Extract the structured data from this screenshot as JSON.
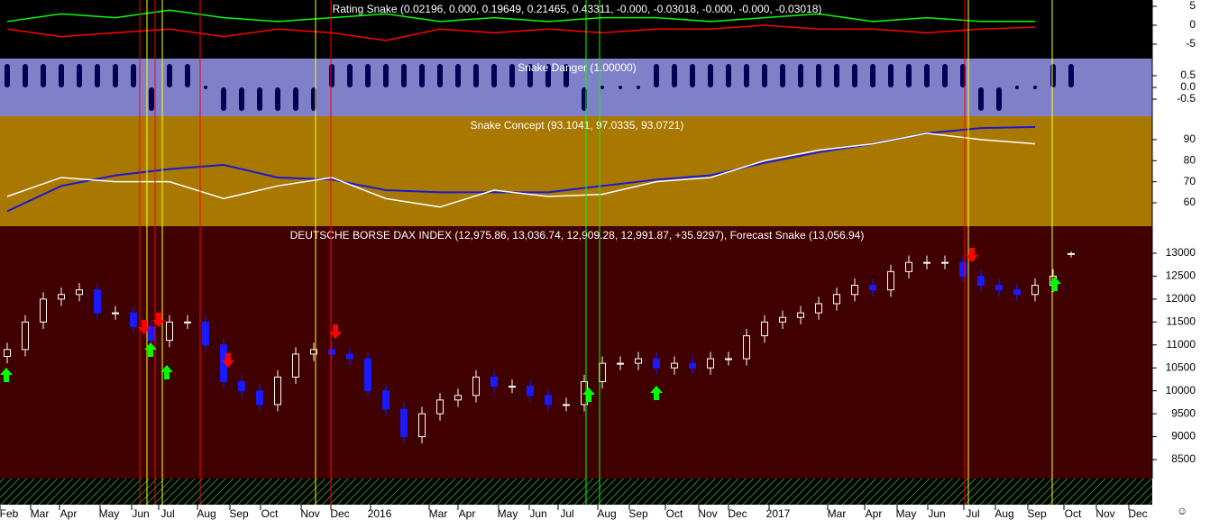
{
  "chart_data": [
    {
      "type": "line",
      "title": "Rating Snake (0.02196, 0.000, 0.19649, 0.21465, 0.43311, -0.000, -0.03018, -0.000, -0.000, -0.03018)",
      "ylim": [
        -8.57,
        6.67
      ],
      "yticks": [
        5,
        0,
        -5
      ],
      "series": [
        {
          "color": "#00ff00",
          "values": [
            1,
            3,
            2,
            4,
            2,
            1,
            2,
            3,
            1,
            2,
            1,
            2,
            2,
            1,
            2,
            3,
            1,
            2,
            1,
            1
          ]
        },
        {
          "color": "#ff0000",
          "values": [
            -1,
            -3,
            -2,
            -1,
            -3,
            -1,
            -2,
            -4,
            -1,
            -2,
            -1,
            -2,
            -1,
            -1,
            0,
            -1,
            -1,
            -2,
            -1,
            -0.5
          ]
        }
      ]
    },
    {
      "type": "bar",
      "title": "Snake Danger (1.00000)",
      "ylim": [
        -1.19,
        1.23
      ],
      "yticks": [
        0.5,
        {
          "value": 0,
          "label": "0.0"
        },
        -0.5
      ],
      "color": "#000055",
      "values": [
        1,
        1,
        1,
        1,
        1,
        1,
        1,
        1,
        -1,
        1,
        1,
        0,
        -1,
        -1,
        -1,
        -1,
        -1,
        -1,
        1,
        1,
        1,
        1,
        1,
        1,
        1,
        1,
        1,
        1,
        1,
        1,
        1,
        1,
        -1,
        0,
        0,
        0,
        1,
        1,
        1,
        1,
        1,
        1,
        1,
        1,
        1,
        1,
        1,
        1,
        1,
        1,
        1,
        1,
        1,
        1,
        -1,
        -1,
        0,
        0,
        1,
        1
      ]
    },
    {
      "type": "line",
      "title": "Snake Concept (93.1041, 97.0335, 93.0721)",
      "ylim": [
        49.3,
        101.1
      ],
      "yticks": [
        90,
        80,
        70,
        60
      ],
      "series": [
        {
          "color": "#1818d8",
          "values": [
            56,
            68,
            73,
            76,
            78,
            72,
            71,
            66,
            65,
            65,
            65,
            68,
            71,
            73,
            79,
            84,
            88,
            93,
            95.5,
            96
          ]
        },
        {
          "color": "#ffffff",
          "values": [
            63,
            72,
            70,
            70,
            62,
            68,
            72,
            62,
            58,
            66,
            63,
            64,
            70,
            72,
            80,
            85,
            88,
            93,
            90,
            88
          ]
        }
      ]
    },
    {
      "type": "candlestick",
      "title": "DEUTSCHE BORSE DAX INDEX (12,975.86, 13,036.74, 12,909.28, 12,991.87, +35.9297), Forecast Snake (13,056.94)",
      "ylim": [
        8107,
        13589
      ],
      "yticks": [
        13000,
        12500,
        12000,
        11500,
        11000,
        10500,
        10000,
        9500,
        9000,
        8500
      ],
      "open": [
        10750,
        10900,
        11500,
        12000,
        12100,
        12200,
        11700,
        11700,
        11400,
        11100,
        11500,
        11500,
        11000,
        10200,
        10000,
        9700,
        10300,
        10800,
        10900,
        10800,
        10700,
        10000,
        9600,
        9000,
        9500,
        9800,
        9900,
        10300,
        10100,
        10100,
        9900,
        9700,
        9700,
        10200,
        10600,
        10600,
        10700,
        10500,
        10600,
        10500,
        10700,
        10700,
        11200,
        11500,
        11600,
        11700,
        11900,
        12100,
        12300,
        12200,
        12600,
        12800,
        12800,
        12800,
        12500,
        12300,
        12200,
        12100,
        12300,
        12975.86
      ],
      "high": [
        11050,
        11650,
        12150,
        12250,
        12350,
        12350,
        11850,
        11850,
        11550,
        11650,
        11650,
        11650,
        11150,
        10350,
        10150,
        10450,
        10950,
        11050,
        11050,
        10950,
        10850,
        10150,
        9750,
        9650,
        9950,
        10050,
        10450,
        10450,
        10250,
        10250,
        10050,
        9850,
        10350,
        10750,
        10750,
        10850,
        10850,
        10750,
        10750,
        10850,
        10850,
        11350,
        11650,
        11750,
        11850,
        12050,
        12250,
        12450,
        12450,
        12750,
        12950,
        12950,
        12950,
        12950,
        12650,
        12450,
        12350,
        12450,
        12650,
        13036.74
      ],
      "low": [
        10600,
        10750,
        11350,
        11850,
        11950,
        11550,
        11550,
        11250,
        10950,
        10950,
        11350,
        10850,
        10050,
        9850,
        9550,
        9550,
        10150,
        10650,
        10650,
        10550,
        9850,
        9450,
        8850,
        8850,
        9350,
        9650,
        9750,
        9950,
        9950,
        9750,
        9550,
        9550,
        9550,
        10050,
        10450,
        10450,
        10350,
        10350,
        10350,
        10350,
        10550,
        10550,
        11050,
        11350,
        11450,
        11550,
        11750,
        11950,
        12050,
        12050,
        12450,
        12650,
        12650,
        12350,
        12150,
        12050,
        11950,
        11950,
        12150,
        12909.28
      ],
      "close": [
        10900,
        11500,
        12000,
        12100,
        12200,
        11700,
        11700,
        11400,
        11100,
        11500,
        11500,
        11000,
        10200,
        10000,
        9700,
        10300,
        10800,
        10900,
        10800,
        10700,
        10000,
        9600,
        9000,
        9500,
        9800,
        9900,
        10300,
        10100,
        10100,
        9900,
        9700,
        9700,
        10200,
        10600,
        10600,
        10700,
        10500,
        10600,
        10500,
        10700,
        10700,
        11200,
        11500,
        11600,
        11700,
        11900,
        12100,
        12300,
        12200,
        12600,
        12800,
        12800,
        12800,
        12500,
        12300,
        12200,
        12100,
        12300,
        12500,
        12991.87
      ]
    }
  ],
  "time_axis": {
    "labels": [
      "Feb",
      "Mar",
      "Apr",
      "May",
      "Jun",
      "Jul",
      "Aug",
      "Sep",
      "Oct",
      "Nov",
      "Dec",
      "2016",
      "Mar",
      "Apr",
      "May",
      "Jun",
      "Jul",
      "Aug",
      "Sep",
      "Oct",
      "Nov",
      "Dec",
      "2017",
      "Mar",
      "Apr",
      "May",
      "Jun",
      "Jul",
      "Aug",
      "Sep",
      "Oct",
      "Nov",
      "Dec"
    ]
  },
  "status_icon": "☺"
}
